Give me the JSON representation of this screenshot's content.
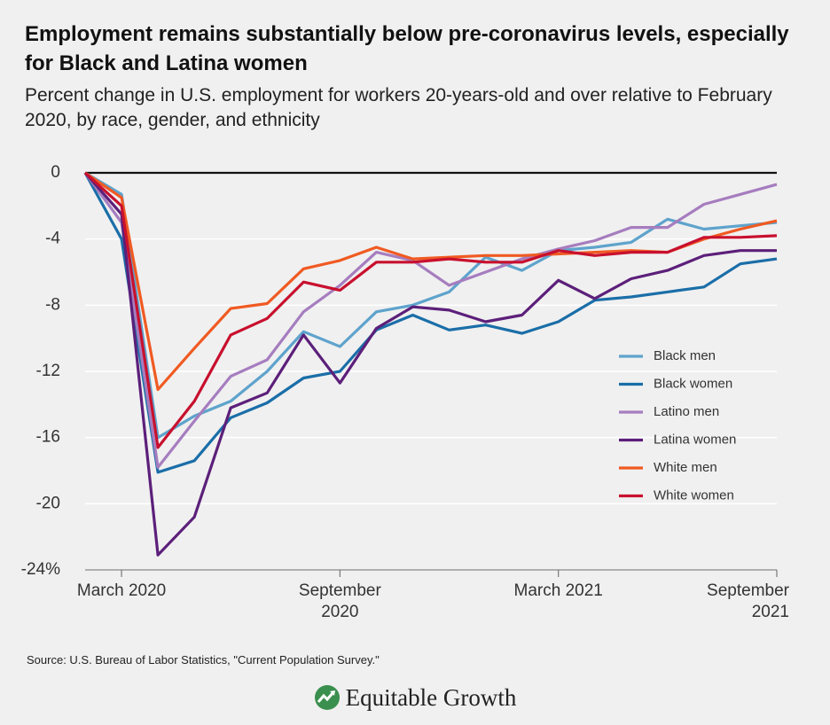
{
  "chart_data": {
    "type": "line",
    "title": "Employment remains substantially below pre-coronavirus levels, especially for Black and Latina women",
    "subtitle": "Percent change in U.S. employment for workers 20-years-old and over relative to February 2020, by race, gender, and ethnicity",
    "source": "Source: U.S. Bureau of Labor Statistics, \"Current Population Survey.\"",
    "logo": "Equitable Growth",
    "categories": [
      null,
      "March 2020",
      null,
      null,
      null,
      null,
      null,
      "September 2020",
      null,
      null,
      null,
      null,
      null,
      "March 2021",
      null,
      null,
      null,
      null,
      null,
      "September 2021"
    ],
    "ylim": [
      -24,
      0
    ],
    "yticks": [
      0,
      -4,
      -8,
      -12,
      -16,
      -20,
      {
        "value": -24,
        "label": "-24%"
      }
    ],
    "grid": true,
    "legend": "right",
    "series": [
      {
        "name": "Black men",
        "color": "#5ea3cc",
        "values": [
          0,
          -1.3,
          -16.0,
          -14.7,
          -13.8,
          -12.0,
          -9.6,
          -10.5,
          -8.4,
          -8.0,
          -7.2,
          -5.1,
          -5.9,
          -4.7,
          -4.5,
          -4.2,
          -2.8,
          -3.4,
          -3.2,
          -3.0
        ]
      },
      {
        "name": "Black women",
        "color": "#1a6ea8",
        "values": [
          0,
          -4.0,
          -18.1,
          -17.4,
          -14.8,
          -13.9,
          -12.4,
          -12.0,
          -9.5,
          -8.6,
          -9.5,
          -9.2,
          -9.7,
          -9.0,
          -7.7,
          -7.5,
          -7.2,
          -6.9,
          -5.5,
          -5.2
        ]
      },
      {
        "name": "Latino men",
        "color": "#a67dbf",
        "values": [
          0,
          -3.0,
          -17.8,
          -15.0,
          -12.3,
          -11.3,
          -8.4,
          -6.8,
          -4.8,
          -5.3,
          -6.8,
          -6.0,
          -5.2,
          -4.6,
          -4.1,
          -3.3,
          -3.3,
          -1.9,
          -1.3,
          -0.7
        ]
      },
      {
        "name": "Latina women",
        "color": "#5c1f7a",
        "values": [
          0,
          -2.5,
          -23.1,
          -20.8,
          -14.2,
          -13.3,
          -9.8,
          -12.7,
          -9.4,
          -8.1,
          -8.3,
          -9.0,
          -8.6,
          -6.5,
          -7.6,
          -6.4,
          -5.9,
          -5.0,
          -4.7,
          -4.7
        ]
      },
      {
        "name": "White men",
        "color": "#f05a22",
        "values": [
          0,
          -1.5,
          -13.1,
          -10.6,
          -8.2,
          -7.9,
          -5.8,
          -5.3,
          -4.5,
          -5.2,
          -5.1,
          -5.0,
          -5.0,
          -4.9,
          -4.8,
          -4.7,
          -4.8,
          -4.0,
          -3.4,
          -2.9
        ]
      },
      {
        "name": "White women",
        "color": "#c8102e",
        "values": [
          0,
          -2.0,
          -16.6,
          -13.8,
          -9.8,
          -8.8,
          -6.6,
          -7.1,
          -5.4,
          -5.4,
          -5.2,
          -5.4,
          -5.4,
          -4.7,
          -5.0,
          -4.8,
          -4.8,
          -3.9,
          -3.9,
          -3.8
        ]
      }
    ]
  }
}
